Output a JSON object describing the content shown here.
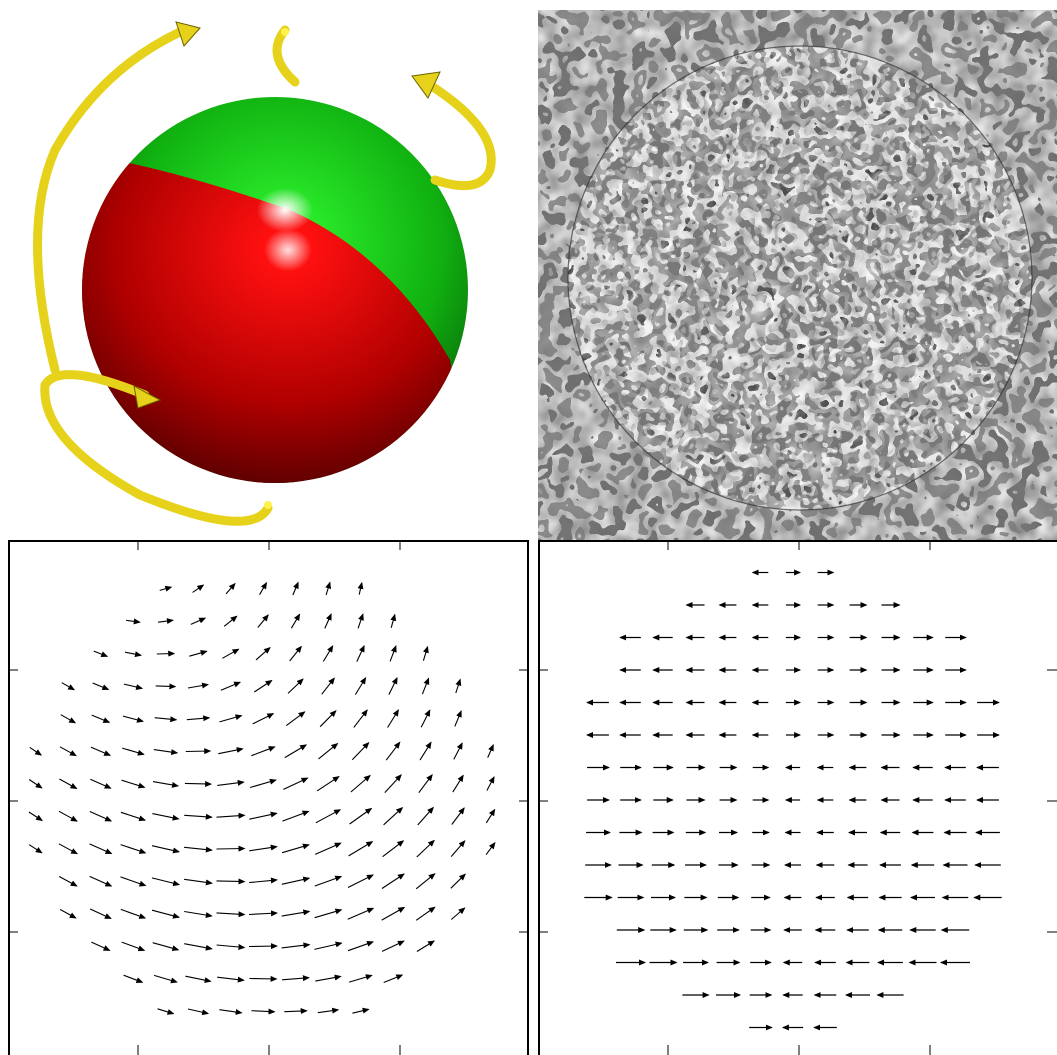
{
  "colors": {
    "sphere_upper": "#22cc22",
    "sphere_lower": "#cc0000",
    "rotation_arrows": "#e6d21a",
    "vector_arrows": "#000000",
    "frame": "#000000"
  },
  "panels": [
    {
      "id": "rotating-sphere",
      "icon": "two-tone-sphere-with-rotation-arrows"
    },
    {
      "id": "noise-texture",
      "icon": "noise-sphere-texture"
    },
    {
      "id": "vector-field-left",
      "icon": "vector-field-rotation"
    },
    {
      "id": "vector-field-right",
      "icon": "vector-field-shear"
    }
  ]
}
